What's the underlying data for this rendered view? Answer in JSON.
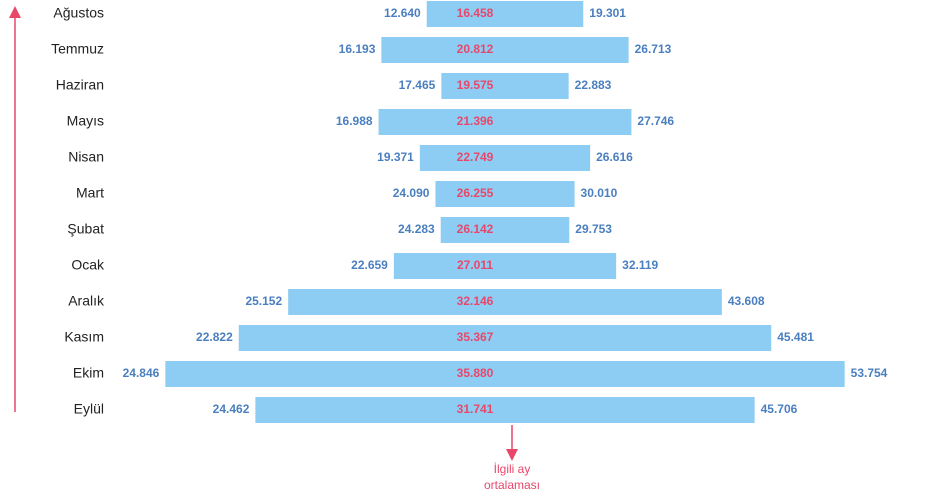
{
  "chart_data": {
    "type": "range_bar",
    "annotation": [
      "İlgili ay",
      "ortalaması"
    ],
    "categories": [
      "Ağustos",
      "Temmuz",
      "Haziran",
      "Mayıs",
      "Nisan",
      "Mart",
      "Şubat",
      "Ocak",
      "Aralık",
      "Kasım",
      "Ekim",
      "Eylül"
    ],
    "low_values": [
      12.64,
      16.193,
      17.465,
      16.988,
      19.371,
      24.09,
      24.283,
      22.659,
      25.152,
      22.822,
      24.846,
      24.462
    ],
    "low_value_labels": [
      "12.640",
      "16.193",
      "17.465",
      "16.988",
      "19.371",
      "24.090",
      "24.283",
      "22.659",
      "25.152",
      "22.822",
      "24.846",
      "24.462"
    ],
    "mid_values": [
      16.458,
      20.812,
      19.575,
      21.396,
      22.749,
      26.255,
      26.142,
      27.011,
      32.146,
      35.367,
      35.88,
      31.741
    ],
    "mid_value_labels": [
      "16.458",
      "20.812",
      "19.575",
      "21.396",
      "22.749",
      "26.255",
      "26.142",
      "27.011",
      "32.146",
      "35.367",
      "35.880",
      "31.741"
    ],
    "high_values": [
      19.301,
      26.713,
      22.883,
      27.746,
      26.616,
      30.01,
      29.753,
      32.119,
      43.608,
      45.481,
      53.754,
      45.706
    ],
    "high_value_labels": [
      "19.301",
      "26.713",
      "22.883",
      "27.746",
      "26.616",
      "30.010",
      "29.753",
      "32.119",
      "43.608",
      "45.481",
      "53.754",
      "45.706"
    ],
    "color": "#8ecdf3"
  }
}
